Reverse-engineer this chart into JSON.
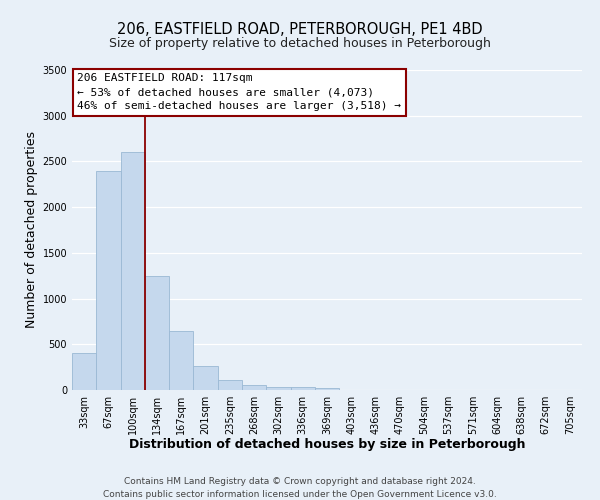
{
  "title": "206, EASTFIELD ROAD, PETERBOROUGH, PE1 4BD",
  "subtitle": "Size of property relative to detached houses in Peterborough",
  "xlabel": "Distribution of detached houses by size in Peterborough",
  "ylabel": "Number of detached properties",
  "bar_labels": [
    "33sqm",
    "67sqm",
    "100sqm",
    "134sqm",
    "167sqm",
    "201sqm",
    "235sqm",
    "268sqm",
    "302sqm",
    "336sqm",
    "369sqm",
    "403sqm",
    "436sqm",
    "470sqm",
    "504sqm",
    "537sqm",
    "571sqm",
    "604sqm",
    "638sqm",
    "672sqm",
    "705sqm"
  ],
  "bar_values": [
    400,
    2400,
    2600,
    1250,
    650,
    260,
    110,
    55,
    35,
    30,
    25,
    0,
    0,
    0,
    0,
    0,
    0,
    0,
    0,
    0,
    0
  ],
  "bar_color": "#c5d8ed",
  "bar_edge_color": "#9ab8d4",
  "ylim": [
    0,
    3500
  ],
  "yticks": [
    0,
    500,
    1000,
    1500,
    2000,
    2500,
    3000,
    3500
  ],
  "vline_color": "#8b0000",
  "annotation_title": "206 EASTFIELD ROAD: 117sqm",
  "annotation_line1": "← 53% of detached houses are smaller (4,073)",
  "annotation_line2": "46% of semi-detached houses are larger (3,518) →",
  "annotation_box_color": "#ffffff",
  "annotation_box_edge": "#8b0000",
  "footer1": "Contains HM Land Registry data © Crown copyright and database right 2024.",
  "footer2": "Contains public sector information licensed under the Open Government Licence v3.0.",
  "bg_color": "#e8f0f8",
  "plot_bg_color": "#e8f0f8",
  "grid_color": "#ffffff",
  "title_fontsize": 10.5,
  "subtitle_fontsize": 9,
  "axis_label_fontsize": 9,
  "tick_fontsize": 7,
  "footer_fontsize": 6.5,
  "annotation_fontsize": 8
}
